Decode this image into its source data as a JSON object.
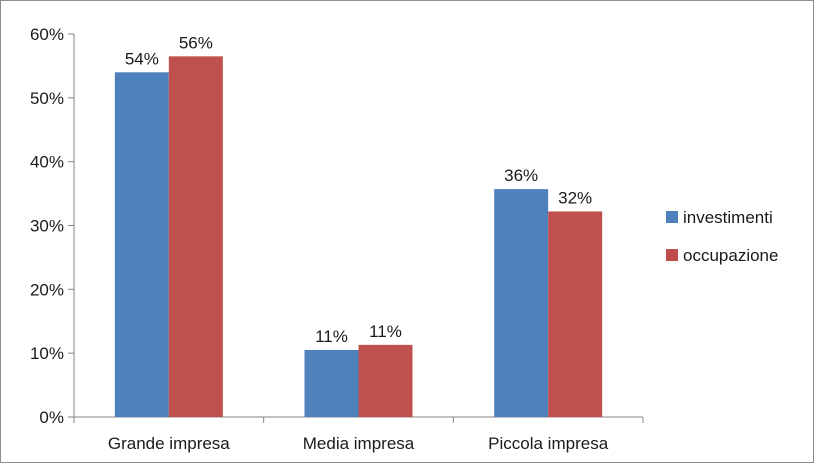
{
  "chart_data": {
    "type": "bar",
    "categories": [
      "Grande impresa",
      "Media impresa",
      "Piccola impresa"
    ],
    "series": [
      {
        "name": "investimenti",
        "values": [
          0.54,
          0.105,
          0.357
        ],
        "labels": [
          "54%",
          "11%",
          "36%"
        ],
        "color": "#4f81bd"
      },
      {
        "name": "occupazione",
        "values": [
          0.565,
          0.113,
          0.322
        ],
        "labels": [
          "56%",
          "11%",
          "32%"
        ],
        "color": "#c0504d"
      }
    ],
    "y_ticks": [
      {
        "value": 0,
        "label": "0%"
      },
      {
        "value": 0.1,
        "label": "10%"
      },
      {
        "value": 0.2,
        "label": "20%"
      },
      {
        "value": 0.3,
        "label": "30%"
      },
      {
        "value": 0.4,
        "label": "40%"
      },
      {
        "value": 0.5,
        "label": "50%"
      },
      {
        "value": 0.6,
        "label": "60%"
      }
    ],
    "ylim": [
      0,
      0.6
    ],
    "grid": false,
    "legend_position": "right",
    "axis_color": "#868686"
  }
}
